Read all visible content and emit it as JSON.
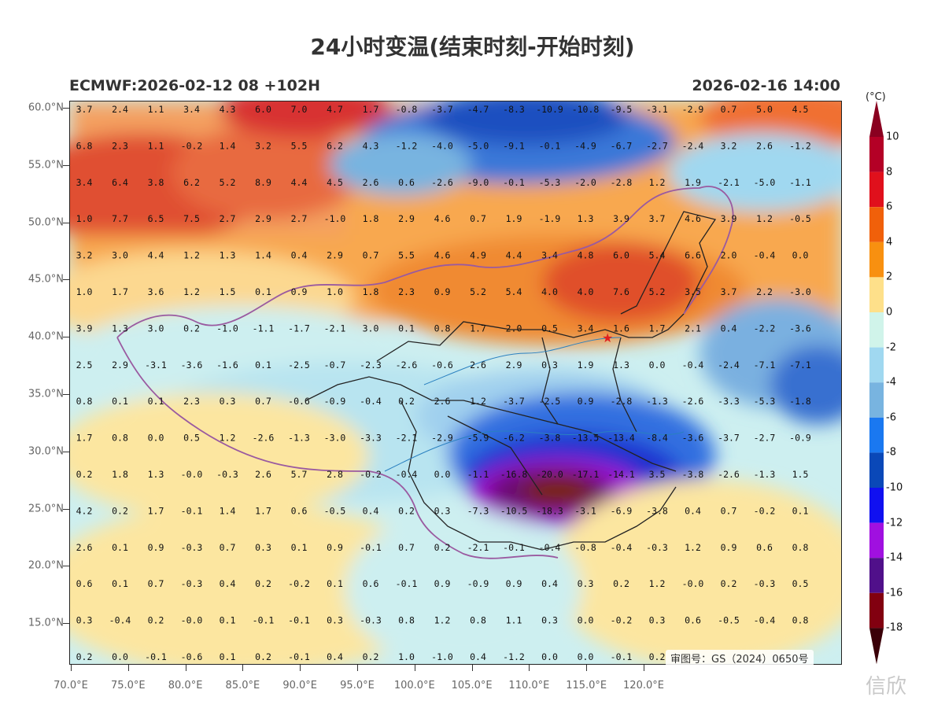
{
  "title": "24小时变温(结束时刻-开始时刻)",
  "subtitle_left": "ECMWF:2026-02-12 08 +102H",
  "subtitle_right": "2026-02-16 14:00",
  "approval_number": "审图号：GS（2024）0650号",
  "watermark": "信欣",
  "lat_labels": [
    "60.0°N",
    "55.0°N",
    "50.0°N",
    "45.0°N",
    "40.0°N",
    "35.0°N",
    "30.0°N",
    "25.0°N",
    "20.0°N",
    "15.0°N"
  ],
  "lon_labels": [
    "70.0°E",
    "75.0°E",
    "80.0°E",
    "85.0°E",
    "90.0°E",
    "95.0°E",
    "100.0°E",
    "105.0°E",
    "110.0°E",
    "115.0°E",
    "120.0°E"
  ],
  "colorbar": {
    "unit": "(°C)",
    "labels": [
      "10",
      "8",
      "6",
      "4",
      "2",
      "0",
      "-2",
      "-4",
      "-6",
      "-8",
      "-10",
      "-12",
      "-14",
      "-16",
      "-18"
    ],
    "colors": [
      "#b40026",
      "#e0101c",
      "#f0600a",
      "#f89010",
      "#fee08a",
      "#d0f4ea",
      "#a0d8f0",
      "#78b4e0",
      "#1a78f0",
      "#0a48b8",
      "#1010f0",
      "#a010e0",
      "#50108a",
      "#820010"
    ]
  },
  "grid_values": [
    [
      "3.7",
      "2.4",
      "1.1",
      "3.4",
      "4.3",
      "6.0",
      "7.0",
      "4.7",
      "1.7",
      "-0.8",
      "-3.7",
      "-4.7",
      "-8.3",
      "-10.9",
      "-10.8",
      "-9.5",
      "-3.1",
      "-2.9",
      "0.7",
      "5.0",
      "4.5"
    ],
    [
      "6.8",
      "2.3",
      "1.1",
      "-0.2",
      "1.4",
      "3.2",
      "5.5",
      "6.2",
      "4.3",
      "-1.2",
      "-4.0",
      "-5.0",
      "-9.1",
      "-0.1",
      "-4.9",
      "-6.7",
      "-2.7",
      "-2.4",
      "3.2",
      "2.6",
      "-1.2"
    ],
    [
      "3.4",
      "6.4",
      "3.8",
      "6.2",
      "5.2",
      "8.9",
      "4.4",
      "4.5",
      "2.6",
      "0.6",
      "-2.6",
      "-9.0",
      "-0.1",
      "-5.3",
      "-2.0",
      "-2.8",
      "1.2",
      "1.9",
      "-2.1",
      "-5.0",
      "-1.1"
    ],
    [
      "1.0",
      "7.7",
      "6.5",
      "7.5",
      "2.7",
      "2.9",
      "2.7",
      "-1.0",
      "1.8",
      "2.9",
      "4.6",
      "0.7",
      "1.9",
      "-1.9",
      "1.3",
      "3.9",
      "3.7",
      "4.6",
      "3.9",
      "1.2",
      "-0.5"
    ],
    [
      "3.2",
      "3.0",
      "4.4",
      "1.2",
      "1.3",
      "1.4",
      "0.4",
      "2.9",
      "0.7",
      "5.5",
      "4.6",
      "4.9",
      "4.4",
      "3.4",
      "4.8",
      "6.0",
      "5.4",
      "6.6",
      "2.0",
      "-0.4",
      "0.0"
    ],
    [
      "1.0",
      "1.7",
      "3.6",
      "1.2",
      "1.5",
      "0.1",
      "0.9",
      "1.0",
      "1.8",
      "2.3",
      "0.9",
      "5.2",
      "5.4",
      "4.0",
      "4.0",
      "7.6",
      "5.2",
      "3.5",
      "3.7",
      "2.2",
      "-3.0"
    ],
    [
      "3.9",
      "1.3",
      "3.0",
      "0.2",
      "-1.0",
      "-1.1",
      "-1.7",
      "-2.1",
      "3.0",
      "0.1",
      "0.8",
      "1.7",
      "2.0",
      "0.5",
      "3.4",
      "1.6",
      "1.7",
      "2.1",
      "0.4",
      "-2.2",
      "-3.6"
    ],
    [
      "2.5",
      "2.9",
      "-3.1",
      "-3.6",
      "-1.6",
      "0.1",
      "-2.5",
      "-0.7",
      "-2.3",
      "-2.6",
      "-0.6",
      "2.6",
      "2.9",
      "0.3",
      "1.9",
      "1.3",
      "0.0",
      "-0.4",
      "-2.4",
      "-7.1",
      "-7.1"
    ],
    [
      "0.8",
      "0.1",
      "0.1",
      "2.3",
      "0.3",
      "0.7",
      "-0.6",
      "-0.9",
      "-0.4",
      "0.2",
      "2.6",
      "1.2",
      "-3.7",
      "-2.5",
      "0.9",
      "-2.8",
      "-1.3",
      "-2.6",
      "-3.3",
      "-5.3",
      "-1.8"
    ],
    [
      "1.7",
      "0.8",
      "0.0",
      "0.5",
      "1.2",
      "-2.6",
      "-1.3",
      "-3.0",
      "-3.3",
      "-2.1",
      "-2.9",
      "-5.9",
      "-6.2",
      "-3.8",
      "-13.5",
      "-13.4",
      "-8.4",
      "-3.6",
      "-3.7",
      "-2.7",
      "-0.9"
    ],
    [
      "0.2",
      "1.8",
      "1.3",
      "-0.0",
      "-0.3",
      "2.6",
      "5.7",
      "2.8",
      "-0.2",
      "-0.4",
      "0.0",
      "-1.1",
      "-16.8",
      "-20.0",
      "-17.1",
      "-14.1",
      "3.5",
      "-3.8",
      "-2.6",
      "-1.3",
      "1.5"
    ],
    [
      "4.2",
      "0.2",
      "1.7",
      "-0.1",
      "1.4",
      "1.7",
      "0.6",
      "-0.5",
      "0.4",
      "0.2",
      "0.3",
      "-7.3",
      "-10.5",
      "-18.3",
      "-3.1",
      "-6.9",
      "-3.8",
      "0.4",
      "0.7",
      "-0.2",
      "0.1"
    ],
    [
      "2.6",
      "0.1",
      "0.9",
      "-0.3",
      "0.7",
      "0.3",
      "0.1",
      "0.9",
      "-0.1",
      "0.7",
      "0.2",
      "-2.1",
      "-0.1",
      "-0.4",
      "-0.8",
      "-0.4",
      "-0.3",
      "1.2",
      "0.9",
      "0.6",
      "0.8"
    ],
    [
      "0.6",
      "0.1",
      "0.7",
      "-0.3",
      "0.4",
      "0.2",
      "-0.2",
      "0.1",
      "0.6",
      "-0.1",
      "0.9",
      "-0.9",
      "0.9",
      "0.4",
      "0.3",
      "0.2",
      "1.2",
      "-0.0",
      "0.2",
      "-0.3",
      "0.5"
    ],
    [
      "0.3",
      "-0.4",
      "0.2",
      "-0.0",
      "0.1",
      "-0.1",
      "-0.1",
      "0.3",
      "-0.3",
      "0.8",
      "1.2",
      "0.8",
      "1.1",
      "0.3",
      "0.0",
      "-0.2",
      "0.3",
      "0.6",
      "-0.5",
      "-0.4",
      "0.8"
    ],
    [
      "0.2",
      "0.0",
      "-0.1",
      "-0.6",
      "0.1",
      "0.2",
      "-0.1",
      "0.4",
      "0.2",
      "1.0",
      "-1.0",
      "0.4",
      "-1.2",
      "0.0",
      "0.0",
      "-0.1",
      "0.2",
      "",
      "",
      "",
      ""
    ]
  ]
}
